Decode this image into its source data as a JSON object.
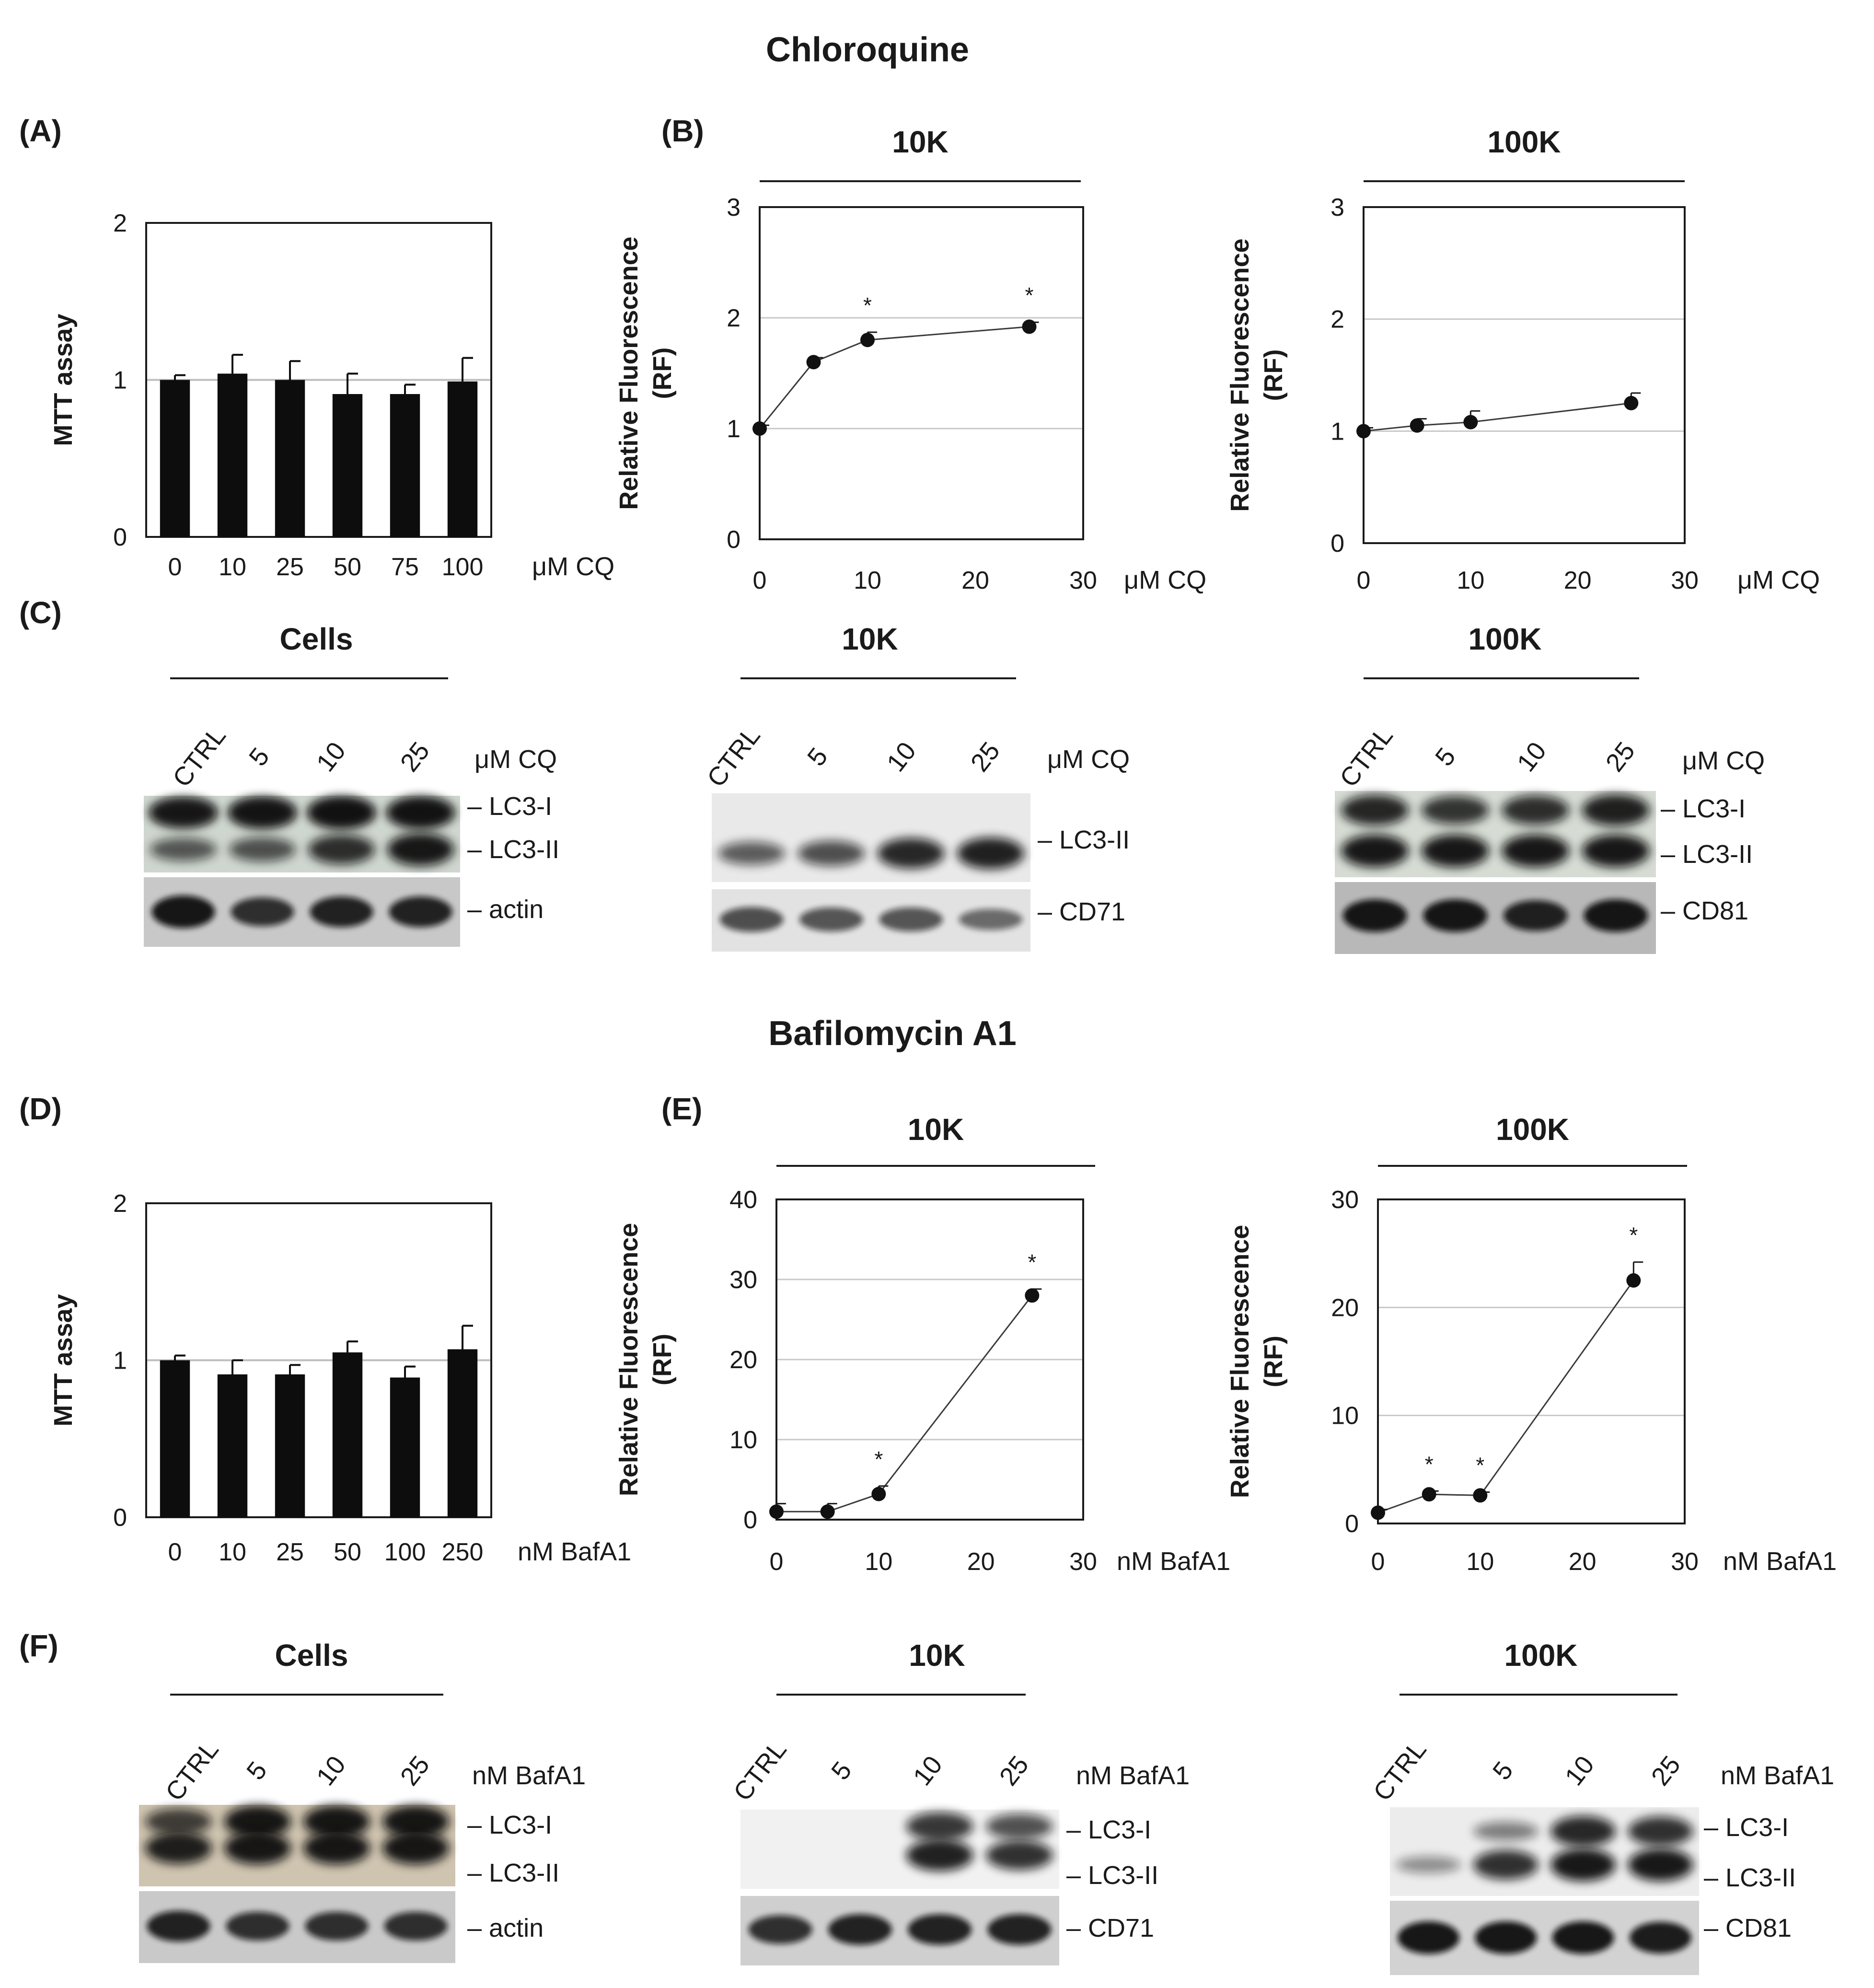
{
  "section_titles": [
    "Chloroquine",
    "Bafilomycin A1"
  ],
  "panel_letters": [
    "(A)",
    "(B)",
    "(C)",
    "(D)",
    "(E)",
    "(F)"
  ],
  "chart_data": [
    {
      "id": "A",
      "type": "bar",
      "title": "",
      "ylabel": "MTT assay",
      "unit": "μM CQ",
      "categories": [
        "0",
        "10",
        "25",
        "50",
        "75",
        "100"
      ],
      "values": [
        1.0,
        1.04,
        1.0,
        0.91,
        0.91,
        0.99
      ],
      "errors": [
        0.03,
        0.12,
        0.12,
        0.13,
        0.06,
        0.15
      ],
      "ylim": [
        0,
        2
      ],
      "yticks": [
        0,
        1,
        2
      ],
      "grid": true
    },
    {
      "id": "B-10K",
      "type": "line",
      "title": "10K",
      "ylabel": "Relative  Fluorescence\n(RF)",
      "unit": "μM CQ",
      "x": [
        0,
        5,
        10,
        25
      ],
      "y": [
        1.0,
        1.6,
        1.8,
        1.92
      ],
      "errors": [
        0.03,
        0.04,
        0.07,
        0.04
      ],
      "asterisks": [
        false,
        false,
        true,
        true
      ],
      "xlim": [
        0,
        30
      ],
      "xticks": [
        0,
        10,
        20,
        30
      ],
      "ylim": [
        0,
        3
      ],
      "yticks": [
        0,
        1,
        2,
        3
      ],
      "grid": true
    },
    {
      "id": "B-100K",
      "type": "line",
      "title": "100K",
      "ylabel": "Relative  Fluorescence\n(RF)",
      "unit": "μM CQ",
      "x": [
        0,
        5,
        10,
        25
      ],
      "y": [
        1.0,
        1.05,
        1.08,
        1.25
      ],
      "errors": [
        0.03,
        0.06,
        0.1,
        0.09
      ],
      "asterisks": [
        false,
        false,
        false,
        false
      ],
      "xlim": [
        0,
        30
      ],
      "xticks": [
        0,
        10,
        20,
        30
      ],
      "ylim": [
        0,
        3
      ],
      "yticks": [
        0,
        1,
        2,
        3
      ],
      "grid": true
    },
    {
      "id": "D",
      "type": "bar",
      "title": "",
      "ylabel": "MTT assay",
      "unit": "nM  BafA1",
      "categories": [
        "0",
        "10",
        "25",
        "50",
        "100",
        "250"
      ],
      "values": [
        1.0,
        0.91,
        0.91,
        1.05,
        0.89,
        1.07
      ],
      "errors": [
        0.03,
        0.09,
        0.06,
        0.07,
        0.07,
        0.15
      ],
      "ylim": [
        0,
        2
      ],
      "yticks": [
        0,
        1,
        2
      ],
      "grid": true
    },
    {
      "id": "E-10K",
      "type": "line",
      "title": "10K",
      "ylabel": "Relative  Fluorescence\n(RF)",
      "unit": "nM  BafA1",
      "x": [
        0,
        5,
        10,
        25
      ],
      "y": [
        1.0,
        1.0,
        3.2,
        28.0
      ],
      "errors": [
        1.0,
        1.0,
        1.0,
        0.8
      ],
      "asterisks": [
        false,
        false,
        true,
        true
      ],
      "xlim": [
        0,
        30
      ],
      "xticks": [
        0,
        10,
        20,
        30
      ],
      "ylim": [
        0,
        40
      ],
      "yticks": [
        0,
        10,
        20,
        30,
        40
      ],
      "grid": true
    },
    {
      "id": "E-100K",
      "type": "line",
      "title": "100K",
      "ylabel": "Relative  Fluorescence\n(RF)",
      "unit": "nM  BafA1",
      "x": [
        0,
        5,
        10,
        25
      ],
      "y": [
        1.0,
        2.7,
        2.6,
        22.5
      ],
      "errors": [
        0.3,
        0.3,
        0.3,
        1.7
      ],
      "asterisks": [
        false,
        true,
        true,
        true
      ],
      "xlim": [
        0,
        30
      ],
      "xticks": [
        0,
        10,
        20,
        30
      ],
      "ylim": [
        0,
        30
      ],
      "yticks": [
        0,
        10,
        20,
        30
      ],
      "grid": true
    }
  ],
  "blots": [
    {
      "id": "C-cells",
      "title": "Cells",
      "lanes": [
        "CTRL",
        "5",
        "10",
        "25"
      ],
      "unit": "μM CQ",
      "top_bands": [
        "LC3-I",
        "LC3-II"
      ],
      "bottom_band": "actin"
    },
    {
      "id": "C-10K",
      "title": "10K",
      "lanes": [
        "CTRL",
        "5",
        "10",
        "25"
      ],
      "unit": "μM CQ",
      "top_bands": [
        "LC3-II"
      ],
      "bottom_band": "CD71"
    },
    {
      "id": "C-100K",
      "title": "100K",
      "lanes": [
        "CTRL",
        "5",
        "10",
        "25"
      ],
      "unit": "μM CQ",
      "top_bands": [
        "LC3-I",
        "LC3-II"
      ],
      "bottom_band": "CD81"
    },
    {
      "id": "F-cells",
      "title": "Cells",
      "lanes": [
        "CTRL",
        "5",
        "10",
        "25"
      ],
      "unit": "nM BafA1",
      "top_bands": [
        "LC3-I",
        "LC3-II"
      ],
      "bottom_band": "actin"
    },
    {
      "id": "F-10K",
      "title": "10K",
      "lanes": [
        "CTRL",
        "5",
        "10",
        "25"
      ],
      "unit": "nM BafA1",
      "top_bands": [
        "LC3-I",
        "LC3-II"
      ],
      "bottom_band": "CD71"
    },
    {
      "id": "F-100K",
      "title": "100K",
      "lanes": [
        "CTRL",
        "5",
        "10",
        "25"
      ],
      "unit": "nM BafA1",
      "top_bands": [
        "LC3-I",
        "LC3-II"
      ],
      "bottom_band": "CD81"
    }
  ]
}
